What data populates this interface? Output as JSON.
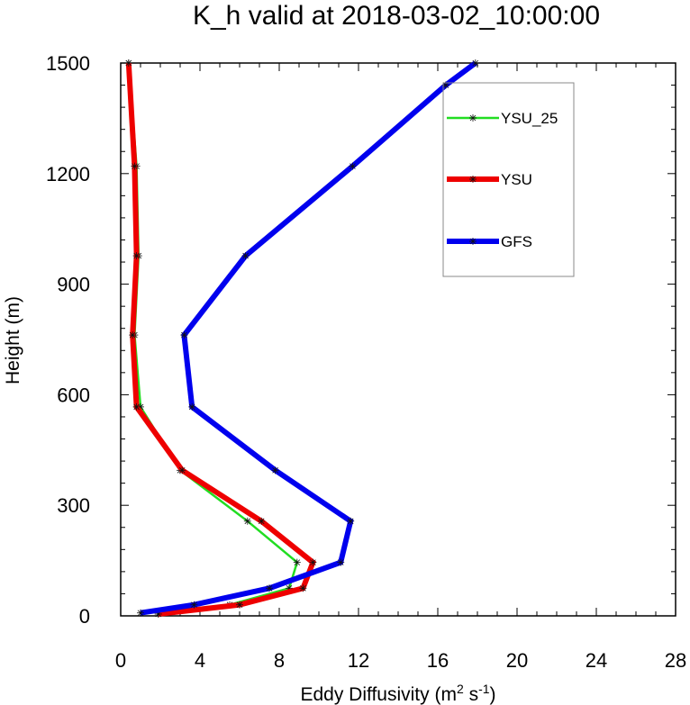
{
  "chart_data": {
    "type": "line",
    "title": "K_h valid at 2018-03-02_10:00:00",
    "xlabel": "Eddy Diffusivity (m",
    "xlabel_sup1": "2",
    "xlabel_mid": " s",
    "xlabel_sup2": "-1",
    "xlabel_end": ")",
    "ylabel": "Height (m)",
    "xlim": [
      0,
      28
    ],
    "ylim": [
      0,
      1500
    ],
    "xticks": [
      0,
      4,
      8,
      12,
      16,
      20,
      24,
      28
    ],
    "yticks": [
      0,
      300,
      600,
      900,
      1200,
      1500
    ],
    "grid": false,
    "legend_position": "top-right",
    "series": [
      {
        "name": "YSU_25",
        "color": "#22dd22",
        "points": [
          [
            1.9,
            5
          ],
          [
            5.5,
            30
          ],
          [
            8.5,
            75
          ],
          [
            8.9,
            145
          ],
          [
            6.4,
            257
          ],
          [
            3.0,
            395
          ],
          [
            1.0,
            567
          ],
          [
            0.7,
            762
          ],
          [
            0.9,
            977
          ],
          [
            0.8,
            1220
          ],
          [
            0.4,
            1500
          ]
        ]
      },
      {
        "name": "YSU",
        "color": "#ee0000",
        "points": [
          [
            1.9,
            5
          ],
          [
            6.0,
            30
          ],
          [
            9.2,
            75
          ],
          [
            9.7,
            145
          ],
          [
            7.1,
            257
          ],
          [
            3.1,
            395
          ],
          [
            0.8,
            567
          ],
          [
            0.6,
            762
          ],
          [
            0.8,
            977
          ],
          [
            0.7,
            1220
          ],
          [
            0.4,
            1500
          ]
        ]
      },
      {
        "name": "GFS",
        "color": "#0000ee",
        "points": [
          [
            1.0,
            8
          ],
          [
            3.7,
            30
          ],
          [
            7.5,
            75
          ],
          [
            11.1,
            145
          ],
          [
            11.6,
            257
          ],
          [
            7.8,
            395
          ],
          [
            3.6,
            567
          ],
          [
            3.2,
            762
          ],
          [
            6.3,
            977
          ],
          [
            11.7,
            1220
          ],
          [
            16.4,
            1440
          ],
          [
            17.9,
            1500
          ]
        ]
      }
    ]
  }
}
